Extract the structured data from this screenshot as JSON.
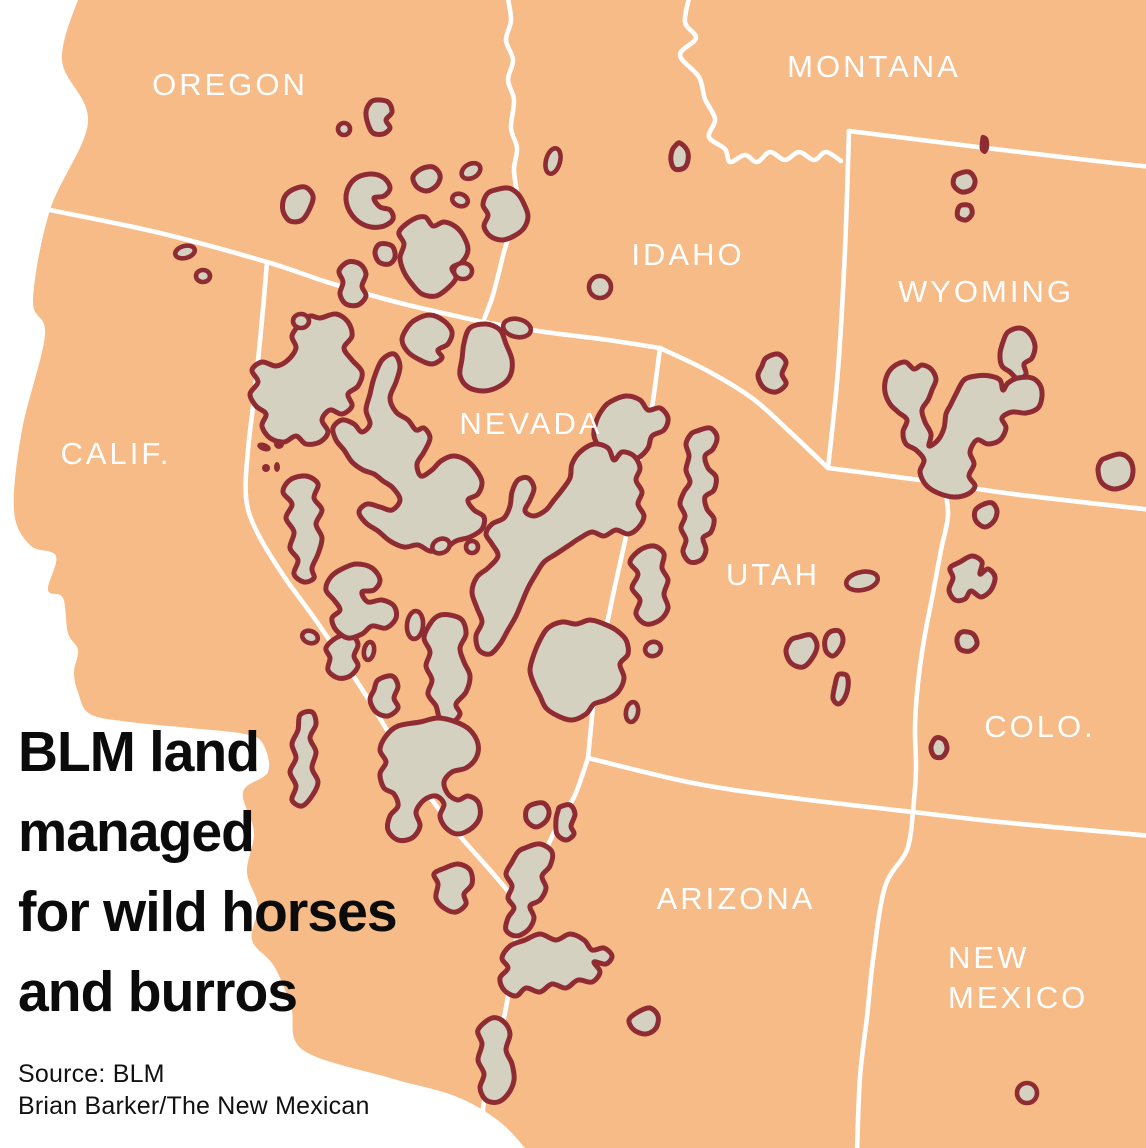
{
  "map": {
    "title": "BLM land\nmanaged\nfor wild horses\nand burros",
    "source_line": "Source: BLM",
    "credit_line": "Brian Barker/The New Mexican",
    "states": [
      {
        "id": "oregon",
        "label": "OREGON"
      },
      {
        "id": "montana",
        "label": "MONTANA"
      },
      {
        "id": "idaho",
        "label": "IDAHO"
      },
      {
        "id": "wyoming",
        "label": "WYOMING"
      },
      {
        "id": "california",
        "label": "CALIF."
      },
      {
        "id": "nevada",
        "label": "NEVADA"
      },
      {
        "id": "utah",
        "label": "UTAH"
      },
      {
        "id": "colorado",
        "label": "COLO."
      },
      {
        "id": "arizona",
        "label": "ARIZONA"
      },
      {
        "id": "new-mexico",
        "label": "NEW\nMEXICO"
      }
    ],
    "colors": {
      "ocean": "#ffffff",
      "land": "#f6bb86",
      "state_border": "#ffffff",
      "blm_area_fill": "#d5d1c0",
      "blm_area_outline": "#8e2b33",
      "label_text": "#ffffff",
      "title_text": "#0b0b0b"
    }
  }
}
